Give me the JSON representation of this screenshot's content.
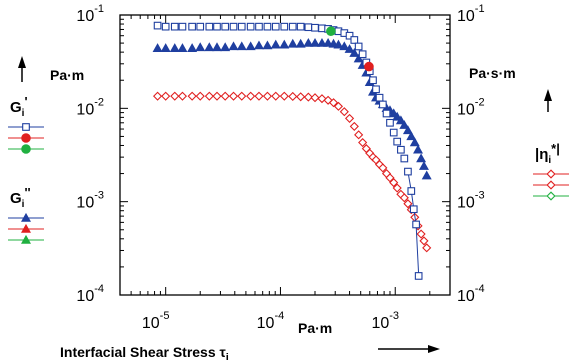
{
  "chart_data": {
    "type": "scatter",
    "title": "",
    "xlabel": "Interfacial Shear Stress τ",
    "xlabel_sub": "i",
    "x_unit": "Pa·m",
    "x_scale": "log",
    "xlim": [
      4e-06,
      0.003
    ],
    "x_ticks": [
      {
        "value": 1e-05,
        "base": "10",
        "exp": "-5"
      },
      {
        "value": 0.0001,
        "base": "10",
        "exp": "-4"
      },
      {
        "value": 0.001,
        "base": "10",
        "exp": "-3"
      }
    ],
    "y_left": {
      "unit": "Pa·m",
      "scale": "log",
      "lim": [
        0.0001,
        0.1
      ],
      "ticks": [
        {
          "value": 0.1,
          "base": "10",
          "exp": "-1"
        },
        {
          "value": 0.01,
          "base": "10",
          "exp": "-2"
        },
        {
          "value": 0.001,
          "base": "10",
          "exp": "-3"
        },
        {
          "value": 0.0001,
          "base": "10",
          "exp": "-4"
        }
      ]
    },
    "y_right": {
      "unit": "Pa·s·m",
      "scale": "log",
      "lim": [
        0.0001,
        0.1
      ],
      "ticks": [
        {
          "value": 0.1,
          "base": "10",
          "exp": "-1"
        },
        {
          "value": 0.01,
          "base": "10",
          "exp": "-2"
        },
        {
          "value": 0.001,
          "base": "10",
          "exp": "-3"
        },
        {
          "value": 0.0001,
          "base": "10",
          "exp": "-4"
        }
      ]
    },
    "legend": {
      "left_groups": [
        {
          "label": "G",
          "sub": "i",
          "mark": "'",
          "entries": [
            {
              "series": "G_storage",
              "color": "#1f3fa0",
              "marker": "square-open"
            },
            {
              "series": "G_storage_point",
              "color": "#e02020",
              "marker": "circle-filled"
            },
            {
              "series": "G_storage_point2",
              "color": "#20b040",
              "marker": "circle-filled"
            }
          ]
        },
        {
          "label": "G",
          "sub": "i",
          "mark": "''",
          "entries": [
            {
              "series": "G_loss",
              "color": "#1f3fa0",
              "marker": "triangle-filled"
            },
            {
              "series": "G_loss_red",
              "color": "#e02020",
              "marker": "triangle-filled"
            },
            {
              "series": "G_loss_green",
              "color": "#20b040",
              "marker": "triangle-filled"
            }
          ]
        }
      ],
      "right_group": {
        "label": "|η",
        "sub": "i",
        "mark": "*|",
        "entries": [
          {
            "series": "eta",
            "color": "#e02020",
            "marker": "diamond-open"
          },
          {
            "series": "eta2",
            "color": "#e02020",
            "marker": "diamond-open"
          },
          {
            "series": "eta3",
            "color": "#20b040",
            "marker": "diamond-open"
          }
        ]
      }
    },
    "series": [
      {
        "id": "G_storage",
        "color": "#1f3fa0",
        "marker": "square-open",
        "axis": "left",
        "line": false,
        "points": [
          [
            8.5e-06,
            0.077
          ],
          [
            1e-05,
            0.075
          ],
          [
            1.2e-05,
            0.075
          ],
          [
            1.4e-05,
            0.075
          ],
          [
            1.7e-05,
            0.075
          ],
          [
            2e-05,
            0.075
          ],
          [
            2.4e-05,
            0.075
          ],
          [
            2.8e-05,
            0.075
          ],
          [
            3.3e-05,
            0.075
          ],
          [
            3.9e-05,
            0.075
          ],
          [
            4.6e-05,
            0.075
          ],
          [
            5.5e-05,
            0.075
          ],
          [
            6.5e-05,
            0.075
          ],
          [
            7.7e-05,
            0.075
          ],
          [
            9.1e-05,
            0.075
          ],
          [
            0.000108,
            0.075
          ],
          [
            0.000128,
            0.075
          ],
          [
            0.00015,
            0.075
          ],
          [
            0.000175,
            0.074
          ],
          [
            0.0002,
            0.073
          ],
          [
            0.00023,
            0.072
          ],
          [
            0.00026,
            0.071
          ],
          [
            0.00029,
            0.069
          ],
          [
            0.00032,
            0.067
          ],
          [
            0.00036,
            0.064
          ],
          [
            0.0004,
            0.06
          ],
          [
            0.00044,
            0.054
          ],
          [
            0.00048,
            0.046
          ],
          [
            0.00052,
            0.038
          ],
          [
            0.00056,
            0.031
          ],
          [
            0.0006,
            0.025
          ],
          [
            0.00064,
            0.02
          ],
          [
            0.00068,
            0.016
          ],
          [
            0.00073,
            0.013
          ],
          [
            0.00078,
            0.011
          ],
          [
            0.00084,
            0.0088
          ],
          [
            0.0009,
            0.007
          ],
          [
            0.00097,
            0.0055
          ],
          [
            0.00104,
            0.0044
          ],
          [
            0.00112,
            0.0036
          ],
          [
            0.0012,
            0.0029
          ],
          [
            0.00129,
            0.0021
          ],
          [
            0.00138,
            0.0013
          ],
          [
            0.00145,
            0.00083
          ],
          [
            0.00152,
            0.00057
          ],
          [
            0.0016,
            0.00016
          ]
        ]
      },
      {
        "id": "G_storage_point",
        "color": "#e02020",
        "marker": "circle-filled",
        "axis": "left",
        "line": false,
        "points": [
          [
            0.00059,
            0.028
          ]
        ]
      },
      {
        "id": "G_storage_point2",
        "color": "#20b040",
        "marker": "circle-filled",
        "axis": "left",
        "line": false,
        "points": [
          [
            0.000275,
            0.067
          ]
        ]
      },
      {
        "id": "G_loss",
        "color": "#1f3fa0",
        "marker": "triangle-filled",
        "axis": "left",
        "line": false,
        "points": [
          [
            8.5e-06,
            0.044
          ],
          [
            1e-05,
            0.044
          ],
          [
            1.2e-05,
            0.044
          ],
          [
            1.4e-05,
            0.044
          ],
          [
            1.7e-05,
            0.044
          ],
          [
            2e-05,
            0.045
          ],
          [
            2.4e-05,
            0.045
          ],
          [
            2.8e-05,
            0.045
          ],
          [
            3.3e-05,
            0.045
          ],
          [
            3.9e-05,
            0.046
          ],
          [
            4.6e-05,
            0.046
          ],
          [
            5.5e-05,
            0.046
          ],
          [
            6.5e-05,
            0.047
          ],
          [
            7.7e-05,
            0.047
          ],
          [
            9.1e-05,
            0.048
          ],
          [
            0.000108,
            0.048
          ],
          [
            0.000128,
            0.049
          ],
          [
            0.00015,
            0.049
          ],
          [
            0.000175,
            0.05
          ],
          [
            0.0002,
            0.05
          ],
          [
            0.00023,
            0.05
          ],
          [
            0.00026,
            0.05
          ],
          [
            0.00029,
            0.049
          ],
          [
            0.00032,
            0.048
          ],
          [
            0.00036,
            0.046
          ],
          [
            0.0004,
            0.043
          ],
          [
            0.00044,
            0.039
          ],
          [
            0.00048,
            0.034
          ],
          [
            0.00052,
            0.029
          ],
          [
            0.00056,
            0.024
          ],
          [
            0.0006,
            0.019
          ],
          [
            0.00064,
            0.015
          ],
          [
            0.00068,
            0.013
          ],
          [
            0.00073,
            0.012
          ],
          [
            0.00078,
            0.011
          ],
          [
            0.00084,
            0.01
          ],
          [
            0.0009,
            0.0095
          ],
          [
            0.00097,
            0.0088
          ],
          [
            0.00104,
            0.0081
          ],
          [
            0.00112,
            0.0074
          ],
          [
            0.0012,
            0.0066
          ],
          [
            0.00129,
            0.0058
          ],
          [
            0.00138,
            0.005
          ],
          [
            0.00148,
            0.0043
          ],
          [
            0.00158,
            0.0036
          ],
          [
            0.00168,
            0.0029
          ],
          [
            0.00178,
            0.0024
          ],
          [
            0.00188,
            0.0019
          ]
        ]
      },
      {
        "id": "eta",
        "color": "#e02020",
        "marker": "diamond-open",
        "axis": "right",
        "line": false,
        "points": [
          [
            8.5e-06,
            0.0135
          ],
          [
            1e-05,
            0.0135
          ],
          [
            1.2e-05,
            0.0135
          ],
          [
            1.4e-05,
            0.0135
          ],
          [
            1.7e-05,
            0.0135
          ],
          [
            2e-05,
            0.0135
          ],
          [
            2.4e-05,
            0.0135
          ],
          [
            2.8e-05,
            0.0135
          ],
          [
            3.3e-05,
            0.0135
          ],
          [
            3.9e-05,
            0.0135
          ],
          [
            4.6e-05,
            0.0135
          ],
          [
            5.5e-05,
            0.0135
          ],
          [
            6.5e-05,
            0.0135
          ],
          [
            7.7e-05,
            0.0135
          ],
          [
            9.1e-05,
            0.0135
          ],
          [
            0.000108,
            0.0135
          ],
          [
            0.000128,
            0.0134
          ],
          [
            0.00015,
            0.0133
          ],
          [
            0.000175,
            0.0132
          ],
          [
            0.0002,
            0.013
          ],
          [
            0.00023,
            0.0127
          ],
          [
            0.00026,
            0.0122
          ],
          [
            0.00029,
            0.0115
          ],
          [
            0.00032,
            0.0105
          ],
          [
            0.00036,
            0.0092
          ],
          [
            0.0004,
            0.0078
          ],
          [
            0.00044,
            0.0064
          ],
          [
            0.00048,
            0.0052
          ],
          [
            0.00052,
            0.0043
          ],
          [
            0.00056,
            0.0037
          ],
          [
            0.0006,
            0.0033
          ],
          [
            0.00064,
            0.003
          ],
          [
            0.00068,
            0.0028
          ],
          [
            0.00073,
            0.0025
          ],
          [
            0.00078,
            0.0023
          ],
          [
            0.00084,
            0.002
          ],
          [
            0.0009,
            0.0018
          ],
          [
            0.00097,
            0.0016
          ],
          [
            0.00104,
            0.0014
          ],
          [
            0.00112,
            0.0012
          ],
          [
            0.0012,
            0.0011
          ],
          [
            0.00129,
            0.00095
          ],
          [
            0.00138,
            0.00082
          ],
          [
            0.00148,
            0.00068
          ],
          [
            0.00158,
            0.00055
          ],
          [
            0.00168,
            0.00045
          ],
          [
            0.00178,
            0.00038
          ],
          [
            0.00188,
            0.00032
          ]
        ]
      }
    ]
  }
}
